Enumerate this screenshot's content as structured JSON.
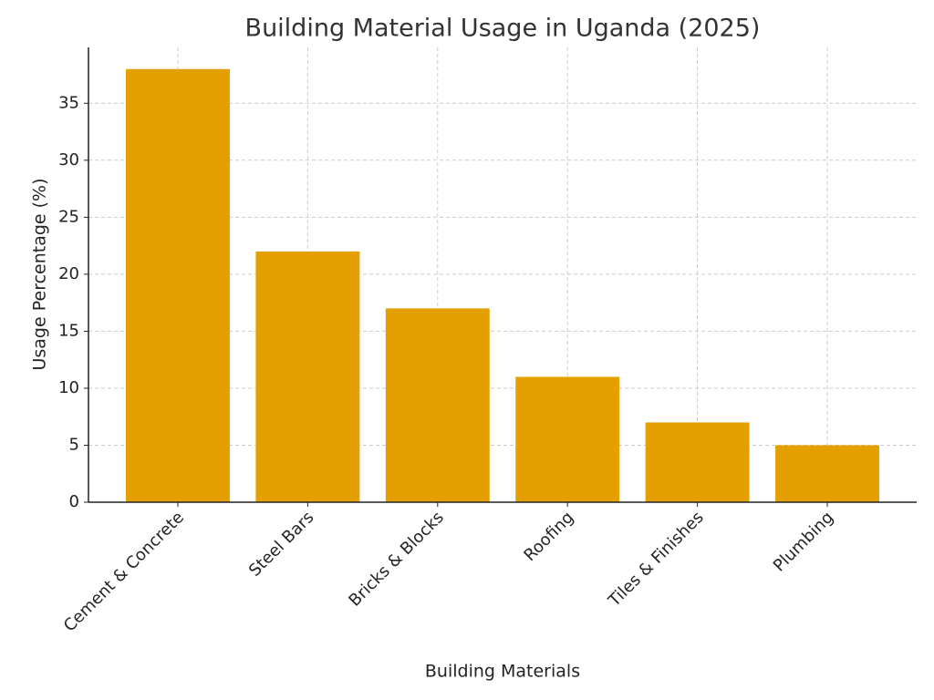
{
  "chart_data": {
    "type": "bar",
    "title": "Building Material Usage in Uganda (2025)",
    "x_label": "Building Materials",
    "y_label": "Usage Percentage (%)",
    "categories": [
      "Cement & Concrete",
      "Steel Bars",
      "Bricks & Blocks",
      "Roofing",
      "Tiles & Finishes",
      "Plumbing"
    ],
    "values": [
      38,
      22,
      17,
      11,
      7,
      5
    ],
    "color": "#e3a000",
    "ylim": [
      0,
      39.9
    ],
    "yticks": [
      0,
      5,
      10,
      15,
      20,
      25,
      30,
      35
    ],
    "grid": true
  }
}
